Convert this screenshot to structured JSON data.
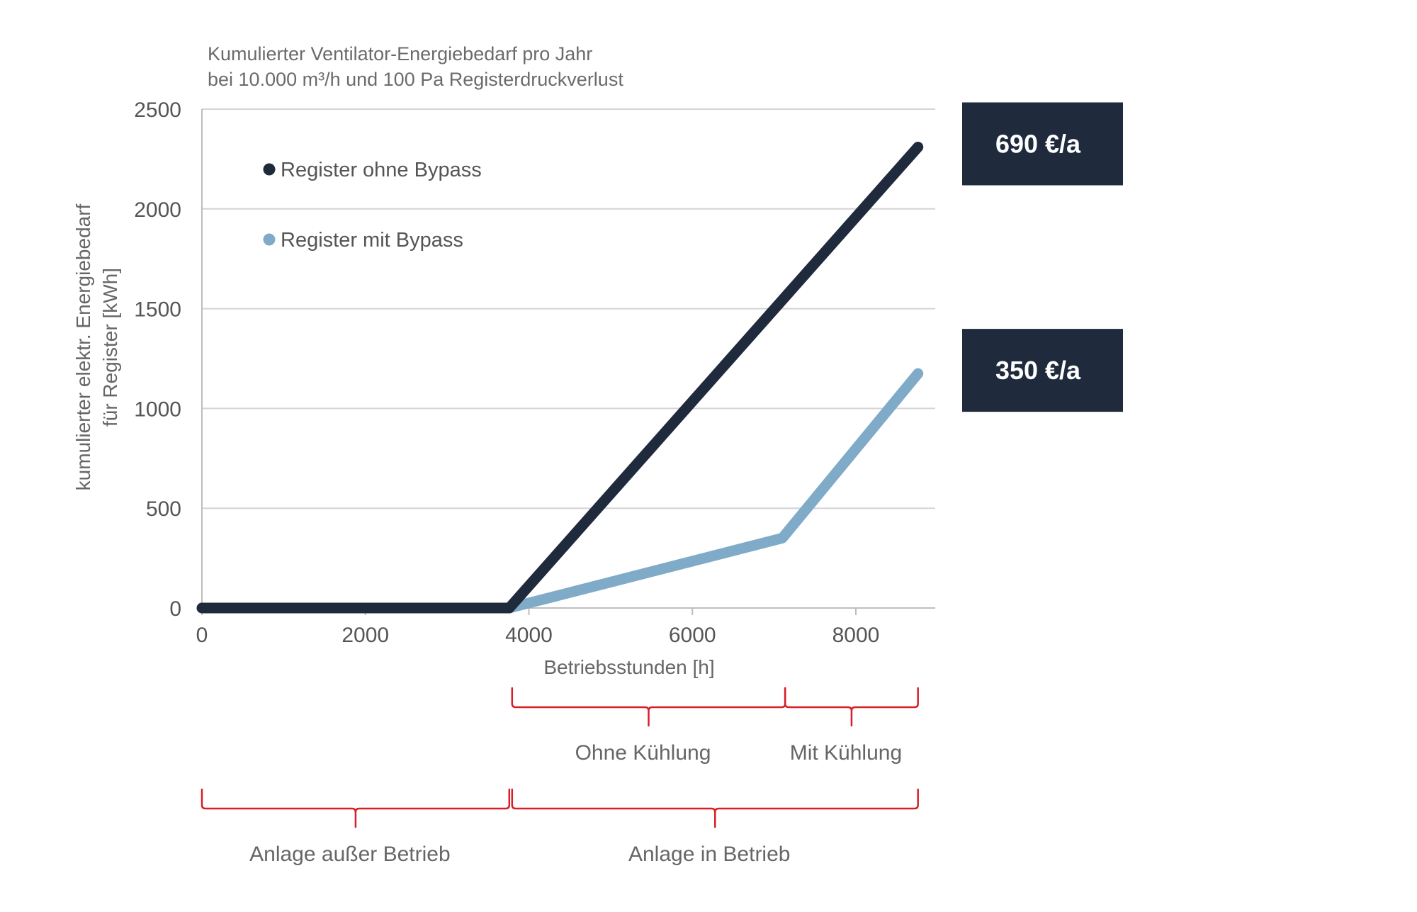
{
  "chart_data": {
    "type": "line",
    "title": [
      "Kumulierter Ventilator-Energiebedarf pro Jahr",
      "bei 10.000 m³/h und 100 Pa Registerdruckverlust"
    ],
    "xlabel": "Betriebsstunden [h]",
    "ylabel": [
      "kumulierter  elektr. Energiebedarf",
      "für Register [kWh]"
    ],
    "xlim": [
      0,
      9000
    ],
    "ylim": [
      0,
      2500
    ],
    "xticks": [
      0,
      2000,
      4000,
      6000,
      8000
    ],
    "yticks": [
      0,
      500,
      1000,
      1500,
      2000,
      2500
    ],
    "grid": "horizontal",
    "legend_position": "top-left",
    "series": [
      {
        "name": "Register ohne Bypass",
        "color": "#1f2a3d",
        "points": [
          [
            0,
            0
          ],
          [
            3760,
            0
          ],
          [
            8760,
            2310
          ]
        ],
        "annotation": "690 €/a",
        "annotation_y": 2310
      },
      {
        "name": "Register mit Bypass",
        "color": "#80abc8",
        "points": [
          [
            0,
            0
          ],
          [
            3760,
            0
          ],
          [
            7100,
            350
          ],
          [
            8760,
            1175
          ]
        ],
        "annotation": "350 €/a",
        "annotation_y": 1175
      }
    ],
    "braces": [
      {
        "label": "Ohne Kühlung",
        "from": 3760,
        "to": 7100,
        "row": 1
      },
      {
        "label": "Mit Kühlung",
        "from": 7100,
        "to": 8760,
        "row": 1
      },
      {
        "label": "Anlage außer Betrieb",
        "from": 0,
        "to": 3760,
        "row": 2
      },
      {
        "label": "Anlage in Betrieb",
        "from": 3760,
        "to": 8760,
        "row": 2
      }
    ],
    "brace_color": "#d61f26",
    "annotation_box_color": "#1f2a3d"
  }
}
